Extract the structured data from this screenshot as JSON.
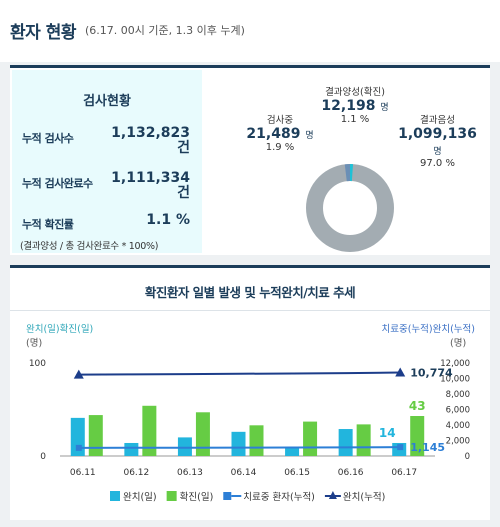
{
  "header": {
    "title": "환자 현황",
    "subtitle": "(6.17. 00시 기준, 1.3 이후 누계)"
  },
  "test_status": {
    "title": "검사현황",
    "rows": [
      {
        "label": "누적 검사수",
        "value": "1,132,823",
        "unit": "건"
      },
      {
        "label": "누적 검사완료수",
        "value": "1,111,334",
        "unit": "건"
      },
      {
        "label": "누적 확진률",
        "value": "1.1 %",
        "unit": ""
      }
    ],
    "note": "(결과양성 / 총 검사완료수 * 100%)"
  },
  "donut": {
    "positive": {
      "name": "결과양성(확진)",
      "value": "12,198",
      "unit": "명",
      "pct": "1.1 %",
      "share": 1.1,
      "color": "#1fc1d6"
    },
    "testing": {
      "name": "검사중",
      "value": "21,489",
      "unit": "명",
      "pct": "1.9 %",
      "share": 1.9,
      "color": "#6b8fb6"
    },
    "negative": {
      "name": "결과음성",
      "value": "1,099,136",
      "unit": "명",
      "pct": "97.0 %",
      "share": 97.0,
      "color": "#a3acb2"
    }
  },
  "chart_data": {
    "type": "bar",
    "title": "확진환자 일별 발생 및 누적완치/치료 추세",
    "left_axis_label": "완치(일)확진(일)",
    "left_axis_unit": "(명)",
    "right_axis_label": "치료중(누적)완치(누적)",
    "right_axis_unit": "(명)",
    "categories": [
      "06.11",
      "06.12",
      "06.13",
      "06.14",
      "06.15",
      "06.16",
      "06.17"
    ],
    "left_ylim": [
      0,
      100
    ],
    "left_ticks": [
      "100",
      "0"
    ],
    "right_ylim": [
      0,
      12000
    ],
    "right_ticks": [
      "12,000",
      "10,000",
      "8,000",
      "6,000",
      "4,000",
      "2,000",
      "0"
    ],
    "series": [
      {
        "name": "완치(일)",
        "kind": "bar",
        "axis": "left",
        "color": "#22b5dd",
        "values": [
          41,
          14,
          20,
          26,
          10,
          29,
          14
        ]
      },
      {
        "name": "확진(일)",
        "kind": "bar",
        "axis": "left",
        "color": "#66cc44",
        "values": [
          44,
          54,
          47,
          33,
          37,
          34,
          43
        ]
      },
      {
        "name": "치료중 환자(누적)",
        "kind": "line",
        "axis": "right",
        "color": "#2d7fd6",
        "values": [
          1050,
          1060,
          1070,
          1080,
          1090,
          1110,
          1145
        ]
      },
      {
        "name": "완치(누적)",
        "kind": "line",
        "axis": "right",
        "color": "#1c3d8a",
        "values": [
          10500,
          10530,
          10570,
          10610,
          10650,
          10700,
          10774
        ]
      }
    ],
    "data_labels": [
      {
        "text": "43",
        "series": "확진(일)",
        "index": 6,
        "color": "#66cc44"
      },
      {
        "text": "14",
        "series": "완치(일)",
        "index": 6,
        "color": "#22b5dd"
      },
      {
        "text": "10,774",
        "series": "완치(누적)",
        "index": 6,
        "color": "#1c3d5a"
      },
      {
        "text": "1,145",
        "series": "치료중 환자(누적)",
        "index": 6,
        "color": "#2d7fd6"
      }
    ]
  }
}
